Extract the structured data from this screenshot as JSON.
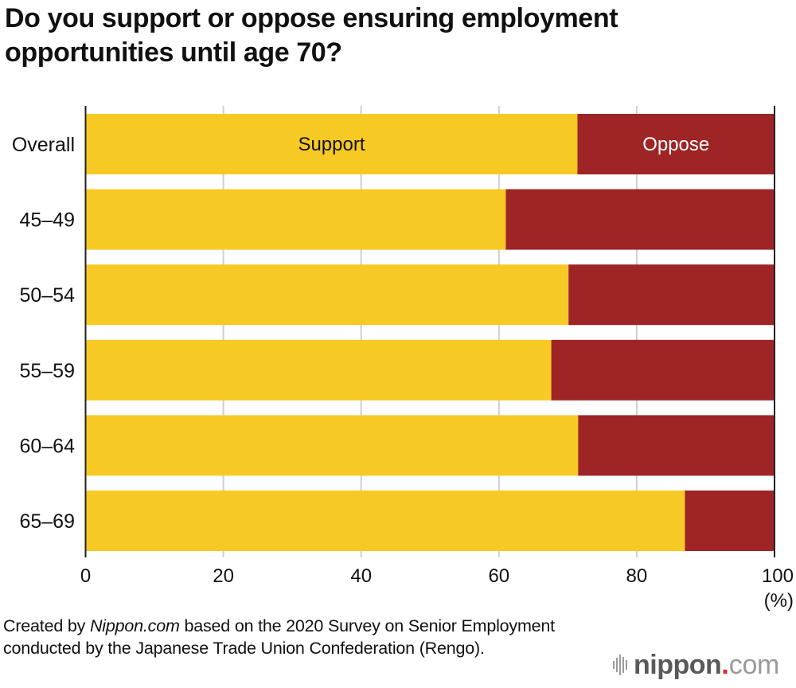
{
  "chart_data": {
    "type": "bar",
    "orientation": "horizontal",
    "stacked": true,
    "title": "Do you support or oppose ensuring employment opportunities until age 70?",
    "categories": [
      "Overall",
      "45–49",
      "50–54",
      "55–59",
      "60–64",
      "65–69"
    ],
    "series": [
      {
        "name": "Support",
        "color": "#F7C925",
        "label_color": "#111111",
        "values": [
          71.4,
          61.0,
          70.1,
          67.6,
          71.5,
          87.0
        ]
      },
      {
        "name": "Oppose",
        "color": "#9E2426",
        "label_color": "#ffffff",
        "values": [
          28.6,
          39.0,
          29.9,
          32.4,
          28.5,
          13.0
        ]
      }
    ],
    "series_labels_on_category": "Overall",
    "xlabel": "",
    "xunit": "(%)",
    "ylabel": "",
    "xlim": [
      0,
      100
    ],
    "xticks": [
      0,
      20,
      40,
      60,
      80,
      100
    ],
    "xtick_labels": [
      "0",
      "20",
      "40",
      "60",
      "80",
      "100"
    ],
    "grid": true,
    "legend": "inline-in-first-bar"
  },
  "footer": {
    "source_prefix": "Created by ",
    "source_brand": "Nippon.com",
    "source_rest": " based on the 2020 Survey on Senior Employment conducted by the Japanese Trade Union Confederation (Rengo)."
  },
  "logo": {
    "name": "nippon",
    "dot": ".",
    "tld": "com"
  }
}
